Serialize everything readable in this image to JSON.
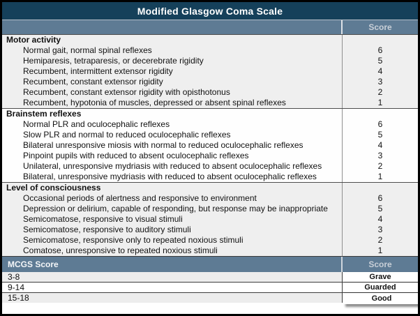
{
  "title": "Modified Glasgow Coma Scale",
  "score_header": "Score",
  "colors": {
    "title_bg": "#15405a",
    "header_bg": "#5e7b94",
    "header_text": "#c8cfd7",
    "band_gray": "#efefef",
    "band_white": "#fefefe",
    "border": "#000000"
  },
  "sections": [
    {
      "name": "Motor activity",
      "items": [
        {
          "label": "Normal gait, normal spinal reflexes",
          "score": "6"
        },
        {
          "label": "Hemiparesis, tetraparesis, or decerebrate rigidity",
          "score": "5"
        },
        {
          "label": "Recumbent, intermittent extensor rigidity",
          "score": "4"
        },
        {
          "label": "Recumbent, constant extensor rigidity",
          "score": "3"
        },
        {
          "label": "Recumbent, constant extensor rigidity with opisthotonus",
          "score": "2"
        },
        {
          "label": "Recumbent, hypotonia of muscles, depressed or absent spinal reflexes",
          "score": "1"
        }
      ]
    },
    {
      "name": "Brainstem reflexes",
      "items": [
        {
          "label": "Normal PLR and oculocephalic reflexes",
          "score": "6"
        },
        {
          "label": "Slow PLR and normal to reduced oculocephalic reflexes",
          "score": "5"
        },
        {
          "label": "Bilateral unresponsive miosis with normal to reduced oculocephalic reflexes",
          "score": "4"
        },
        {
          "label": "Pinpoint pupils with reduced to absent oculocephalic reflexes",
          "score": "3"
        },
        {
          "label": "Unilateral, unresponsive mydriasis with reduced to absent oculocephalic reflexes",
          "score": "2"
        },
        {
          "label": "Bilateral, unresponsive mydriasis with reduced to absent oculocephalic reflexes",
          "score": "1"
        }
      ]
    },
    {
      "name": "Level of consciousness",
      "items": [
        {
          "label": "Occasional periods of alertness and responsive to environment",
          "score": "6"
        },
        {
          "label": "Depression or delirium, capable of responding, but response may be inappropriate",
          "score": "5"
        },
        {
          "label": "Semicomatose, responsive to visual stimuli",
          "score": "4"
        },
        {
          "label": "Semicomatose, responsive to auditory stimuli",
          "score": "3"
        },
        {
          "label": "Semicomatose, responsive only to repeated noxious stimuli",
          "score": "2"
        },
        {
          "label": "Comatose, unresponsive to repeated noxious stimuli",
          "score": "1"
        }
      ]
    }
  ],
  "summary": {
    "header_label": "MCGS Score",
    "score_label": "Score",
    "rows": [
      {
        "range": "3-8",
        "rating": "Grave"
      },
      {
        "range": "9-14",
        "rating": "Guarded"
      },
      {
        "range": "15-18",
        "rating": "Good"
      }
    ]
  }
}
